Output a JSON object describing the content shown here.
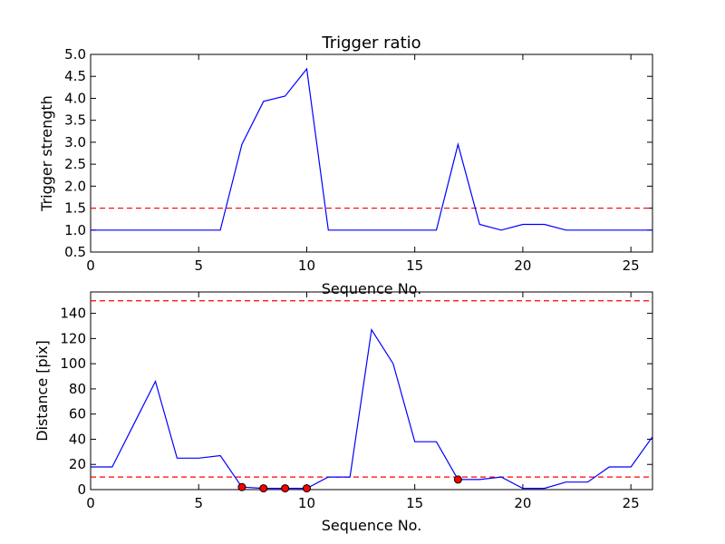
{
  "chart_data": [
    {
      "type": "line",
      "title": "Trigger ratio",
      "xlabel": "Sequence No.",
      "ylabel": "Trigger strength",
      "xlim": [
        0,
        26
      ],
      "ylim": [
        0.5,
        5.0
      ],
      "xticks": [
        0,
        5,
        10,
        15,
        20,
        25
      ],
      "yticks": [
        0.5,
        1.0,
        1.5,
        2.0,
        2.5,
        3.0,
        3.5,
        4.0,
        4.5,
        5.0
      ],
      "grid": false,
      "series": [
        {
          "color": "#0000ff",
          "style": "solid",
          "x": [
            0,
            1,
            2,
            3,
            4,
            5,
            6,
            7,
            8,
            9,
            10,
            11,
            12,
            13,
            14,
            15,
            16,
            17,
            18,
            19,
            20,
            21,
            22,
            23,
            24,
            25,
            26
          ],
          "y": [
            1.0,
            1.0,
            1.0,
            1.0,
            1.0,
            1.0,
            1.0,
            2.95,
            3.93,
            4.05,
            4.67,
            1.0,
            1.0,
            1.0,
            1.0,
            1.0,
            1.0,
            2.95,
            1.13,
            1.0,
            1.13,
            1.13,
            1.0,
            1.0,
            1.0,
            1.0,
            1.0
          ]
        }
      ],
      "hlines": [
        {
          "y": 1.5,
          "color": "#ff0000",
          "style": "dashed"
        }
      ],
      "markers": []
    },
    {
      "type": "line",
      "title": "",
      "xlabel": "Sequence No.",
      "ylabel": "Distance [pix]",
      "xlim": [
        0,
        26
      ],
      "ylim": [
        0,
        157
      ],
      "xticks": [
        0,
        5,
        10,
        15,
        20,
        25
      ],
      "yticks": [
        0,
        20,
        40,
        60,
        80,
        100,
        120,
        140
      ],
      "grid": false,
      "series": [
        {
          "color": "#0000ff",
          "style": "solid",
          "x": [
            0,
            1,
            2,
            3,
            4,
            5,
            6,
            7,
            8,
            9,
            10,
            11,
            12,
            13,
            14,
            15,
            16,
            17,
            18,
            19,
            20,
            21,
            22,
            23,
            24,
            25,
            26
          ],
          "y": [
            18,
            18,
            52,
            86,
            25,
            25,
            27,
            2,
            1,
            1,
            1,
            10,
            10,
            127,
            100,
            38,
            38,
            8,
            8,
            10,
            1,
            1,
            6,
            6,
            18,
            18,
            42
          ]
        }
      ],
      "hlines": [
        {
          "y": 10,
          "color": "#ff0000",
          "style": "dashed"
        },
        {
          "y": 150,
          "color": "#ff0000",
          "style": "dashed"
        }
      ],
      "markers": [
        {
          "x": 7,
          "y": 2,
          "color": "#ff0000"
        },
        {
          "x": 8,
          "y": 1,
          "color": "#ff0000"
        },
        {
          "x": 9,
          "y": 1,
          "color": "#ff0000"
        },
        {
          "x": 10,
          "y": 1,
          "color": "#ff0000"
        },
        {
          "x": 17,
          "y": 8,
          "color": "#ff0000"
        }
      ]
    }
  ]
}
